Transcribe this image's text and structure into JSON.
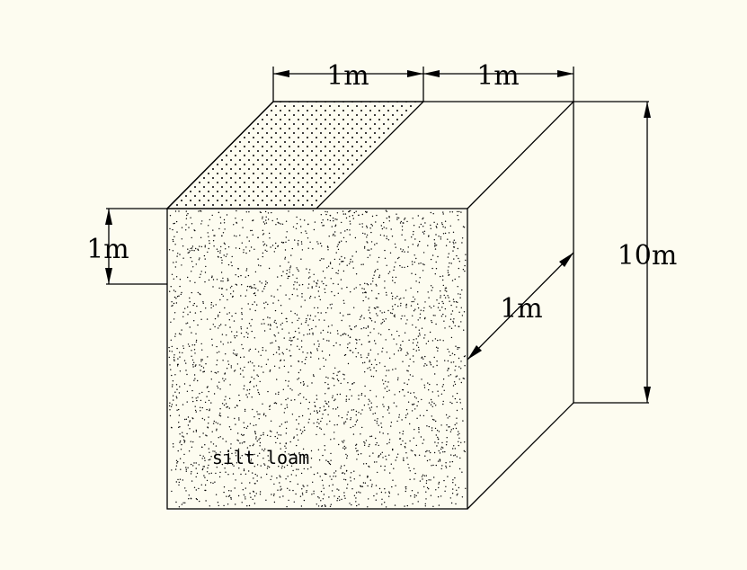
{
  "dimensions": {
    "top_left": "1m",
    "top_right": "1m",
    "left_height": "1m",
    "right_height": "10m",
    "depth": "1m"
  },
  "material_label": "silt loam"
}
